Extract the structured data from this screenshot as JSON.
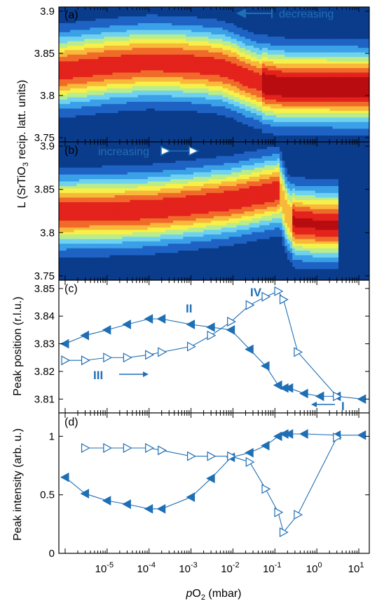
{
  "chart_data": [
    {
      "panel": "(a)",
      "type": "heatmap",
      "direction_label": "decreasing",
      "ylim": [
        3.745,
        3.905
      ],
      "yticks": [
        "3.75",
        "3.8",
        "3.85",
        "3.9"
      ],
      "ridge": {
        "x": [
          1e-06,
          1e-05,
          0.0001,
          0.001,
          0.005,
          0.01,
          0.02,
          0.05,
          0.1,
          0.2,
          1,
          10,
          15
        ],
        "y": [
          3.83,
          3.836,
          3.84,
          3.838,
          3.834,
          3.829,
          3.822,
          3.815,
          3.812,
          3.811,
          3.811,
          3.81,
          3.81
        ]
      },
      "colormap": [
        "#0b3c8c",
        "#1e63c4",
        "#3aa0e8",
        "#6fd2ef",
        "#b9ec8c",
        "#f6f04a",
        "#f8b83a",
        "#f06a2a",
        "#e3231c",
        "#b80c10"
      ]
    },
    {
      "panel": "(b)",
      "type": "heatmap",
      "direction_label": "increasing",
      "ylim": [
        3.745,
        3.905
      ],
      "yticks": [
        "3.75",
        "3.8",
        "3.85",
        "3.9"
      ],
      "ridge": {
        "x": [
          1e-06,
          1e-05,
          0.0001,
          0.001,
          0.01,
          0.05,
          0.1,
          0.13,
          0.2,
          0.3,
          1,
          3
        ],
        "y": [
          3.824,
          3.825,
          3.827,
          3.832,
          3.838,
          3.845,
          3.848,
          3.849,
          3.82,
          3.812,
          3.81,
          3.81
        ]
      }
    },
    {
      "panel": "(c)",
      "type": "line",
      "ylabel": "Peak position (r.l.u.)",
      "ylim": [
        3.805,
        3.853
      ],
      "yticks": [
        "3.81",
        "3.82",
        "3.83",
        "3.84",
        "3.85"
      ],
      "annotations": [
        "IV",
        "II",
        "III",
        "I"
      ],
      "series": [
        {
          "marker": "filled-left-triangle",
          "x": [
            1e-06,
            3e-06,
            1e-05,
            3e-05,
            0.0001,
            0.0002,
            0.001,
            0.003,
            0.009,
            0.025,
            0.06,
            0.12,
            0.17,
            0.22,
            0.5,
            1.2,
            3,
            12
          ],
          "y": [
            3.83,
            3.833,
            3.835,
            3.837,
            3.839,
            3.839,
            3.837,
            3.836,
            3.835,
            3.828,
            3.822,
            3.815,
            3.814,
            3.814,
            3.812,
            3.811,
            3.811,
            3.81
          ]
        },
        {
          "marker": "open-right-triangle",
          "x": [
            1e-06,
            3e-06,
            1e-05,
            3e-05,
            0.0001,
            0.0002,
            0.001,
            0.003,
            0.009,
            0.025,
            0.06,
            0.12,
            0.16,
            0.35,
            3
          ],
          "y": [
            3.824,
            3.824,
            3.825,
            3.825,
            3.826,
            3.827,
            3.829,
            3.833,
            3.838,
            3.844,
            3.847,
            3.849,
            3.846,
            3.827,
            3.811
          ]
        }
      ]
    },
    {
      "panel": "(d)",
      "type": "line",
      "ylabel": "Peak intensity (arb. u.)",
      "xlabel": "pO2 (mbar)",
      "ylim": [
        0,
        1.2
      ],
      "yticks": [
        "0",
        "0.5",
        "1"
      ],
      "xticks": [
        "10-5",
        "10-4",
        "10-3",
        "10-2",
        "10-1",
        "100",
        "101"
      ],
      "series": [
        {
          "marker": "filled-left-triangle",
          "x": [
            1e-06,
            3e-06,
            1e-05,
            3e-05,
            0.0001,
            0.0002,
            0.001,
            0.003,
            0.009,
            0.025,
            0.06,
            0.12,
            0.17,
            0.22,
            0.5,
            3,
            12
          ],
          "y": [
            0.65,
            0.51,
            0.45,
            0.42,
            0.38,
            0.38,
            0.48,
            0.64,
            0.82,
            0.86,
            0.92,
            1.0,
            1.02,
            1.02,
            1.02,
            1.01,
            1.01
          ]
        },
        {
          "marker": "open-right-triangle",
          "x": [
            3e-06,
            1e-05,
            3e-05,
            0.0001,
            0.0002,
            0.001,
            0.003,
            0.009,
            0.025,
            0.06,
            0.12,
            0.16,
            0.35,
            3
          ],
          "y": [
            0.9,
            0.9,
            0.9,
            0.9,
            0.88,
            0.83,
            0.83,
            0.83,
            0.78,
            0.55,
            0.35,
            0.18,
            0.33,
            0.99
          ]
        }
      ]
    }
  ],
  "shared": {
    "heatmap_ylabel_prefix": "L (SrTiO",
    "heatmap_ylabel_sub": "3",
    "heatmap_ylabel_suffix": " recip. latt. units)",
    "xlabel_italic": "p",
    "xlabel_O": "O",
    "xlabel_sub": "2",
    "xlabel_unit": " (mbar)",
    "x_tick_base": "10",
    "x_tick_exponents": [
      "-5",
      "-4",
      "-3",
      "-2",
      "-1",
      "0",
      "1"
    ],
    "xlim_log10": [
      -6.15,
      1.25
    ],
    "series_color": "#1f6fb5"
  }
}
